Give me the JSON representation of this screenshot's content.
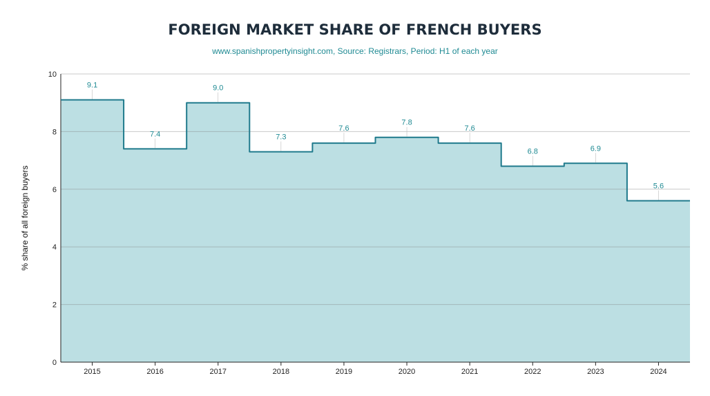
{
  "chart_data": {
    "type": "area",
    "title": "FOREIGN MARKET SHARE OF FRENCH BUYERS",
    "subtitle": "www.spanishpropertyinsight.com, Source: Registrars, Period: H1 of each year",
    "xlabel": "",
    "ylabel": "% share of all foreign buyers",
    "categories": [
      "2015",
      "2016",
      "2017",
      "2018",
      "2019",
      "2020",
      "2021",
      "2022",
      "2023",
      "2024"
    ],
    "values": [
      9.1,
      7.4,
      9.0,
      7.3,
      7.6,
      7.8,
      7.6,
      6.8,
      6.9,
      5.6
    ],
    "data_labels": [
      "9.1",
      "7.4",
      "9.0",
      "7.3",
      "7.6",
      "7.8",
      "7.6",
      "6.8",
      "6.9",
      "5.6"
    ],
    "ylim": [
      0,
      10
    ],
    "yticks": [
      "0",
      "2",
      "4",
      "6",
      "8",
      "10"
    ],
    "grid": true,
    "step": true,
    "colors": {
      "line": "#1f7a8c",
      "fill": "#bcdfe3",
      "label": "#1f8a93",
      "grid": "#cccccc"
    }
  }
}
